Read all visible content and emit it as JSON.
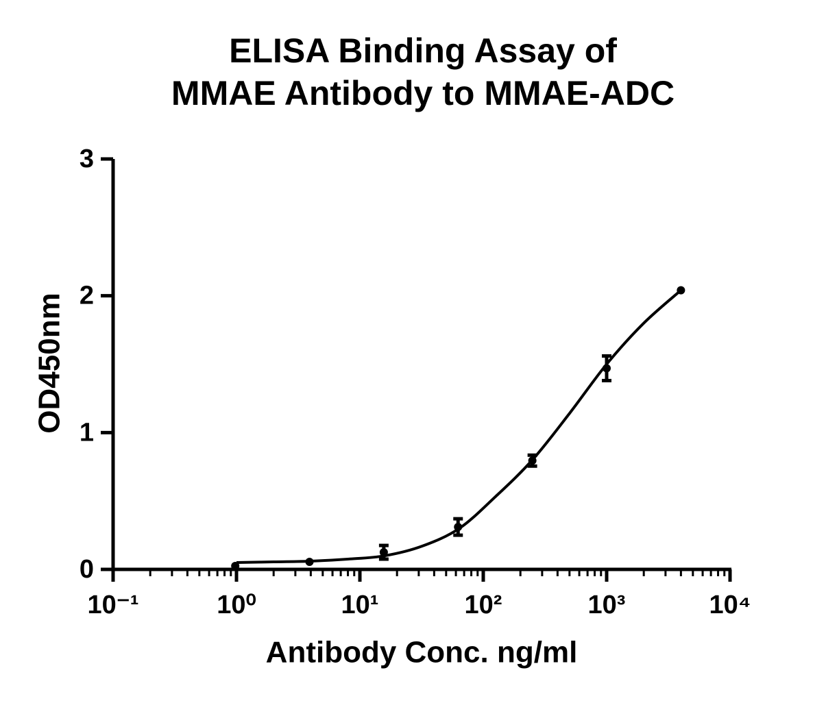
{
  "chart_data": {
    "type": "scatter",
    "title": [
      "ELISA Binding Assay of",
      "MMAE Antibody to MMAE-ADC"
    ],
    "x_label": "Antibody Conc. ng/ml",
    "y_label": "OD450nm",
    "x": [
      0.977,
      3.906,
      15.625,
      62.5,
      250,
      1000,
      4000
    ],
    "values": [
      0.025,
      0.055,
      0.125,
      0.31,
      0.795,
      1.47,
      2.04
    ],
    "errors": [
      null,
      null,
      0.05,
      0.06,
      0.04,
      0.09,
      null
    ],
    "fit": {
      "x": [
        1,
        2,
        4,
        8,
        16,
        32,
        64,
        125,
        250,
        500,
        1000,
        2000,
        4000
      ],
      "y": [
        0.05,
        0.055,
        0.06,
        0.075,
        0.1,
        0.17,
        0.3,
        0.53,
        0.8,
        1.14,
        1.5,
        1.8,
        2.04
      ]
    },
    "color": "#000000",
    "x_log": true,
    "minor_ticks": true,
    "xlim": [
      0.1,
      10000
    ],
    "xticks": [
      {
        "value": 0.1,
        "label": "10⁻¹"
      },
      {
        "value": 1,
        "label": "10⁰"
      },
      {
        "value": 10,
        "label": "10¹"
      },
      {
        "value": 100,
        "label": "10²"
      },
      {
        "value": 1000,
        "label": "10³"
      },
      {
        "value": 10000,
        "label": "10⁴"
      }
    ],
    "ylim": [
      0,
      3
    ],
    "yticks": [
      0,
      1,
      2,
      3
    ]
  }
}
